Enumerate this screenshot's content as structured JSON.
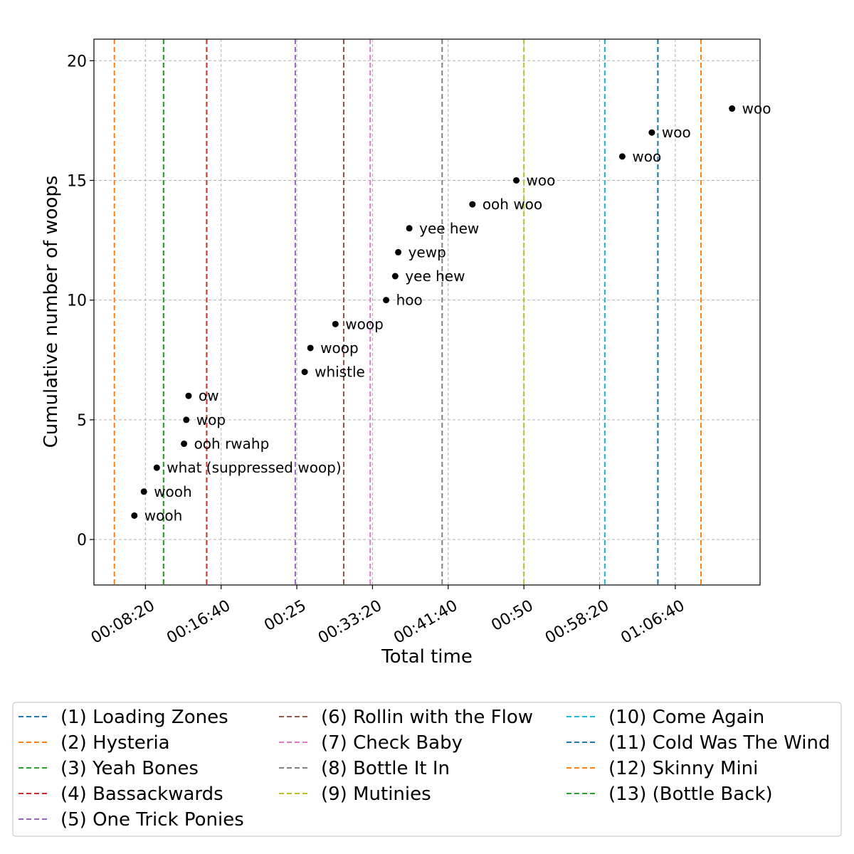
{
  "chart_data": {
    "type": "scatter",
    "title": "",
    "xlabel": "Total time",
    "ylabel": "Cumulative number of woops",
    "x_unit": "seconds",
    "xlim": [
      160,
      4560
    ],
    "ylim": [
      -1.9,
      20.9
    ],
    "grid": true,
    "x_ticks": [
      {
        "value": 500,
        "label": "00:08:20"
      },
      {
        "value": 1000,
        "label": "00:16:40"
      },
      {
        "value": 1500,
        "label": "00:25"
      },
      {
        "value": 2000,
        "label": "00:33:20"
      },
      {
        "value": 2500,
        "label": "00:41:40"
      },
      {
        "value": 3000,
        "label": "00:50"
      },
      {
        "value": 3500,
        "label": "00:58:20"
      },
      {
        "value": 4000,
        "label": "01:06:40"
      }
    ],
    "y_ticks": [
      {
        "value": 0,
        "label": "0"
      },
      {
        "value": 5,
        "label": "5"
      },
      {
        "value": 10,
        "label": "10"
      },
      {
        "value": 15,
        "label": "15"
      },
      {
        "value": 20,
        "label": "20"
      }
    ],
    "points": [
      {
        "x": 427,
        "y": 1,
        "label": "wooh"
      },
      {
        "x": 490,
        "y": 2,
        "label": "wooh"
      },
      {
        "x": 575,
        "y": 3,
        "label": "what (suppressed woop)"
      },
      {
        "x": 755,
        "y": 4,
        "label": "ooh rwahp"
      },
      {
        "x": 770,
        "y": 5,
        "label": "wop"
      },
      {
        "x": 785,
        "y": 6,
        "label": "ow"
      },
      {
        "x": 1552,
        "y": 7,
        "label": "whistle"
      },
      {
        "x": 1590,
        "y": 8,
        "label": "woop"
      },
      {
        "x": 1755,
        "y": 9,
        "label": "woop"
      },
      {
        "x": 2090,
        "y": 10,
        "label": "hoo"
      },
      {
        "x": 2150,
        "y": 11,
        "label": "yee hew"
      },
      {
        "x": 2170,
        "y": 12,
        "label": "yewp"
      },
      {
        "x": 2243,
        "y": 13,
        "label": "yee hew"
      },
      {
        "x": 2660,
        "y": 14,
        "label": "ooh woo"
      },
      {
        "x": 2950,
        "y": 15,
        "label": "woo"
      },
      {
        "x": 3650,
        "y": 16,
        "label": "woo"
      },
      {
        "x": 3845,
        "y": 17,
        "label": "woo"
      },
      {
        "x": 4375,
        "y": 18,
        "label": "woo"
      }
    ],
    "vlines": [
      {
        "name": "(1) Loading Zones",
        "x": 3885,
        "color": "#1f77b4"
      },
      {
        "name": "(2) Hysteria",
        "x": 295,
        "color": "#ff7f0e"
      },
      {
        "name": "(3) Yeah Bones",
        "x": 620,
        "color": "#2ca02c"
      },
      {
        "name": "(4) Bassackwards",
        "x": 905,
        "color": "#d62728"
      },
      {
        "name": "(5) One Trick Ponies",
        "x": 1490,
        "color": "#9467bd"
      },
      {
        "name": "(6) Rollin with the Flow",
        "x": 1810,
        "color": "#8c564b"
      },
      {
        "name": "(7) Check Baby",
        "x": 1985,
        "color": "#e377c2"
      },
      {
        "name": "(8) Bottle It In",
        "x": 2460,
        "color": "#7f7f7f"
      },
      {
        "name": "(9) Mutinies",
        "x": 3000,
        "color": "#bcbd22"
      },
      {
        "name": "(10) Come Again",
        "x": 3535,
        "color": "#17becf"
      },
      {
        "name": "(11) Cold Was The Wind",
        "x": 3885,
        "color": "#1f77b4"
      },
      {
        "name": "(12) Skinny Mini",
        "x": 4170,
        "color": "#ff7f0e"
      },
      {
        "name": "(13) (Bottle Back)",
        "x": 620,
        "color": "#2ca02c"
      }
    ],
    "legend_placement": "bottom, 3 columns"
  }
}
